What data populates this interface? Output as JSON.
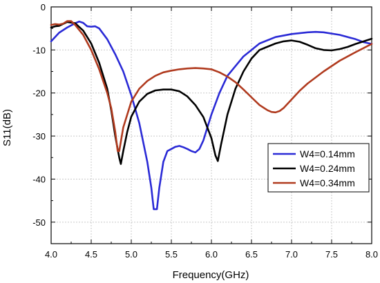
{
  "chart_data": {
    "type": "line",
    "title": "",
    "xlabel": "Frequency(GHz)",
    "ylabel": "S11(dB)",
    "xlim": [
      4.0,
      8.0
    ],
    "ylim": [
      -55,
      0
    ],
    "x_ticks": [
      4.0,
      4.5,
      5.0,
      5.5,
      6.0,
      6.5,
      7.0,
      7.5,
      8.0
    ],
    "x_tick_labels": [
      "4.0",
      "4.5",
      "5.0",
      "5.5",
      "6.0",
      "6.5",
      "7.0",
      "7.5",
      "8.0"
    ],
    "y_ticks": [
      0,
      -10,
      -20,
      -30,
      -40,
      -50
    ],
    "y_tick_labels": [
      "0",
      "-10",
      "-20",
      "-30",
      "-40",
      "-50"
    ],
    "grid": true,
    "legend_position": "bottom-right",
    "series": [
      {
        "name": "W4=0.14mm",
        "color": "#2a2ad6",
        "points": [
          [
            4.0,
            -8
          ],
          [
            4.1,
            -6
          ],
          [
            4.2,
            -4.8
          ],
          [
            4.3,
            -3.8
          ],
          [
            4.35,
            -3.4
          ],
          [
            4.4,
            -3.7
          ],
          [
            4.45,
            -4.5
          ],
          [
            4.5,
            -4.6
          ],
          [
            4.55,
            -4.5
          ],
          [
            4.6,
            -5
          ],
          [
            4.7,
            -7.5
          ],
          [
            4.8,
            -11
          ],
          [
            4.9,
            -15
          ],
          [
            5.0,
            -20.5
          ],
          [
            5.1,
            -27
          ],
          [
            5.2,
            -36
          ],
          [
            5.25,
            -42
          ],
          [
            5.28,
            -47
          ],
          [
            5.32,
            -47
          ],
          [
            5.35,
            -42
          ],
          [
            5.4,
            -36
          ],
          [
            5.45,
            -33.5
          ],
          [
            5.5,
            -33
          ],
          [
            5.55,
            -32.5
          ],
          [
            5.6,
            -32.3
          ],
          [
            5.65,
            -32.6
          ],
          [
            5.7,
            -33
          ],
          [
            5.75,
            -33.5
          ],
          [
            5.8,
            -33.8
          ],
          [
            5.85,
            -33
          ],
          [
            5.9,
            -31
          ],
          [
            6.0,
            -25
          ],
          [
            6.1,
            -20
          ],
          [
            6.2,
            -16
          ],
          [
            6.4,
            -11.5
          ],
          [
            6.6,
            -8.5
          ],
          [
            6.8,
            -7
          ],
          [
            7.0,
            -6.3
          ],
          [
            7.2,
            -5.9
          ],
          [
            7.3,
            -5.8
          ],
          [
            7.4,
            -5.9
          ],
          [
            7.6,
            -6.5
          ],
          [
            7.8,
            -7.5
          ],
          [
            7.9,
            -8.2
          ],
          [
            8.0,
            -8.6
          ]
        ]
      },
      {
        "name": "W4=0.24mm",
        "color": "#000000",
        "points": [
          [
            4.0,
            -4.8
          ],
          [
            4.05,
            -4.5
          ],
          [
            4.1,
            -4.4
          ],
          [
            4.2,
            -3.5
          ],
          [
            4.3,
            -3.8
          ],
          [
            4.4,
            -5.5
          ],
          [
            4.5,
            -8.5
          ],
          [
            4.6,
            -13
          ],
          [
            4.7,
            -19
          ],
          [
            4.75,
            -24
          ],
          [
            4.8,
            -30
          ],
          [
            4.85,
            -35
          ],
          [
            4.87,
            -36.5
          ],
          [
            4.9,
            -33.5
          ],
          [
            4.95,
            -29
          ],
          [
            5.0,
            -25.5
          ],
          [
            5.1,
            -22
          ],
          [
            5.2,
            -20.2
          ],
          [
            5.3,
            -19.4
          ],
          [
            5.4,
            -19.2
          ],
          [
            5.5,
            -19.2
          ],
          [
            5.6,
            -19.6
          ],
          [
            5.7,
            -20.8
          ],
          [
            5.8,
            -22.8
          ],
          [
            5.9,
            -25.6
          ],
          [
            6.0,
            -30.5
          ],
          [
            6.05,
            -34.5
          ],
          [
            6.08,
            -35.8
          ],
          [
            6.12,
            -32
          ],
          [
            6.2,
            -25
          ],
          [
            6.3,
            -19
          ],
          [
            6.4,
            -15
          ],
          [
            6.5,
            -12
          ],
          [
            6.6,
            -10
          ],
          [
            6.8,
            -8.5
          ],
          [
            6.9,
            -8
          ],
          [
            7.0,
            -7.8
          ],
          [
            7.1,
            -8.1
          ],
          [
            7.2,
            -8.8
          ],
          [
            7.3,
            -9.6
          ],
          [
            7.4,
            -10
          ],
          [
            7.5,
            -10.1
          ],
          [
            7.6,
            -9.8
          ],
          [
            7.7,
            -9.3
          ],
          [
            7.8,
            -8.6
          ],
          [
            7.9,
            -8
          ],
          [
            8.0,
            -7.4
          ]
        ]
      },
      {
        "name": "W4=0.34mm",
        "color": "#b03a1e",
        "points": [
          [
            4.0,
            -4.2
          ],
          [
            4.05,
            -4
          ],
          [
            4.1,
            -4.1
          ],
          [
            4.15,
            -3.9
          ],
          [
            4.2,
            -3.3
          ],
          [
            4.25,
            -3.3
          ],
          [
            4.3,
            -4.2
          ],
          [
            4.4,
            -6.5
          ],
          [
            4.5,
            -10
          ],
          [
            4.6,
            -14.5
          ],
          [
            4.7,
            -20
          ],
          [
            4.75,
            -23.5
          ],
          [
            4.8,
            -29
          ],
          [
            4.83,
            -33.5
          ],
          [
            4.85,
            -33.5
          ],
          [
            4.9,
            -28
          ],
          [
            5.0,
            -22
          ],
          [
            5.1,
            -19
          ],
          [
            5.2,
            -17.2
          ],
          [
            5.3,
            -16
          ],
          [
            5.4,
            -15.2
          ],
          [
            5.5,
            -14.8
          ],
          [
            5.6,
            -14.5
          ],
          [
            5.7,
            -14.3
          ],
          [
            5.8,
            -14.2
          ],
          [
            5.9,
            -14.3
          ],
          [
            6.0,
            -14.5
          ],
          [
            6.1,
            -15.2
          ],
          [
            6.2,
            -16.2
          ],
          [
            6.3,
            -17.5
          ],
          [
            6.4,
            -19.2
          ],
          [
            6.5,
            -21
          ],
          [
            6.6,
            -22.8
          ],
          [
            6.7,
            -24
          ],
          [
            6.75,
            -24.4
          ],
          [
            6.8,
            -24.5
          ],
          [
            6.85,
            -24.2
          ],
          [
            6.9,
            -23.5
          ],
          [
            7.0,
            -21.5
          ],
          [
            7.1,
            -19.5
          ],
          [
            7.2,
            -17.8
          ],
          [
            7.4,
            -15
          ],
          [
            7.6,
            -12.5
          ],
          [
            7.8,
            -10.5
          ],
          [
            8.0,
            -8.6
          ]
        ]
      }
    ]
  }
}
